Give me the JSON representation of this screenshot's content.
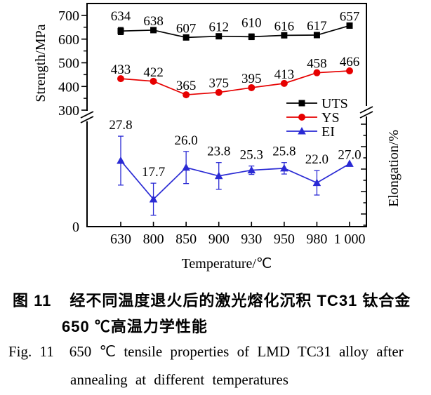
{
  "caption_zh": {
    "label": "图 11",
    "line1": "经不同温度退火后的激光熔化沉积 TC31 钛合金",
    "line2": "650 ℃高温力学性能"
  },
  "caption_en": {
    "label": "Fig. 11",
    "line1": "650 ℃ tensile properties of LMD TC31 alloy after",
    "line2": "annealing at different temperatures"
  },
  "chart_data": {
    "type": "line",
    "xlabel": "Temperature/℃",
    "ylabel_left": "Strength/MPa",
    "ylabel_right": "Elongation/%",
    "x_values": [
      630,
      800,
      850,
      900,
      930,
      950,
      980,
      1000
    ],
    "x_tick_labels": [
      "630",
      "800",
      "850",
      "900",
      "930",
      "950",
      "980",
      "1 000"
    ],
    "left_axis": {
      "major_ticks": [
        700,
        600,
        500,
        400,
        300
      ],
      "minor_ticks": [
        650,
        550,
        450,
        350
      ],
      "origin_label": "0",
      "range_shown": [
        300,
        700
      ],
      "axis_break": true
    },
    "right_axis": {
      "numeric_labels_shown": false,
      "axis_break": true
    },
    "legend": {
      "position": "middle-right",
      "entries": [
        "UTS",
        "YS",
        "EI"
      ]
    },
    "grid": false,
    "series": [
      {
        "name": "UTS",
        "axis": "left",
        "color": "#000000",
        "marker": "square",
        "values": [
          634,
          638,
          607,
          612,
          610,
          616,
          617,
          657
        ],
        "labels": [
          "634",
          "638",
          "607",
          "612",
          "610",
          "616",
          "617",
          "657"
        ],
        "errors": [
          15,
          0,
          0,
          0,
          12,
          0,
          0,
          0
        ]
      },
      {
        "name": "YS",
        "axis": "left",
        "color": "#e60000",
        "marker": "circle",
        "values": [
          433,
          422,
          365,
          375,
          395,
          413,
          458,
          466
        ],
        "labels": [
          "433",
          "422",
          "365",
          "375",
          "395",
          "413",
          "458",
          "466"
        ],
        "errors": [
          0,
          0,
          0,
          0,
          0,
          0,
          0,
          0
        ]
      },
      {
        "name": "EI",
        "axis": "right",
        "color": "#2a2ad4",
        "marker": "triangle",
        "values": [
          27.8,
          17.7,
          26.0,
          23.8,
          25.3,
          25.8,
          22.0,
          27.0
        ],
        "labels": [
          "27.8",
          "17.7",
          "26.0",
          "23.8",
          "25.3",
          "25.8",
          "22.0",
          "27.0"
        ],
        "errors": [
          6.4,
          4.2,
          4.2,
          3.5,
          1.1,
          1.5,
          3.2,
          0
        ]
      }
    ]
  }
}
